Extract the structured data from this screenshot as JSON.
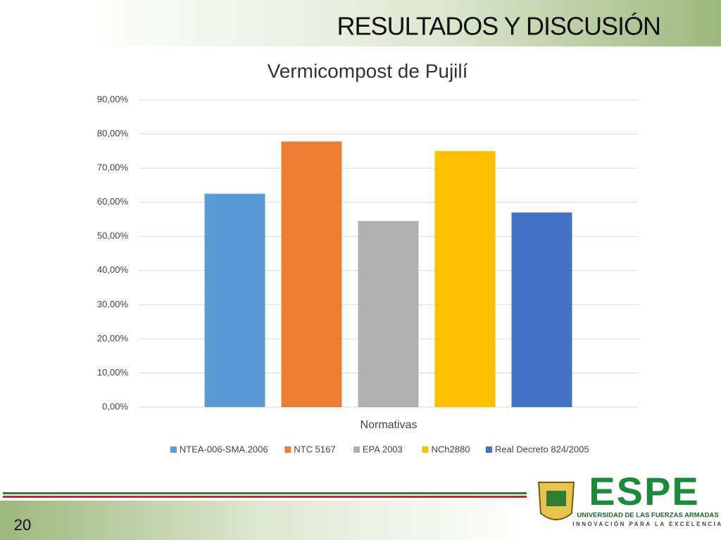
{
  "slide": {
    "heading": "RESULTADOS Y DISCUSIÓN",
    "page_number": "20",
    "logo_text": "ESPE",
    "logo_line1": "UNIVERSIDAD DE LAS FUERZAS ARMADAS",
    "logo_line2": "INNOVACIÓN PARA LA EXCELENCIA"
  },
  "chart_data": {
    "type": "bar",
    "title": "Vermicompost de Pujilí",
    "x_label": "Normativas",
    "series": [
      {
        "name": "NTEA-006-SMA.2006",
        "color": "#5b9bd5",
        "values": [
          62.5
        ]
      },
      {
        "name": "NTC 5167",
        "color": "#ed7d31",
        "values": [
          77.8
        ]
      },
      {
        "name": "EPA 2003",
        "color": "#b0b0b0",
        "values": [
          54.5
        ]
      },
      {
        "name": "NCh2880",
        "color": "#ffc000",
        "values": [
          75.0
        ]
      },
      {
        "name": "Real Decreto 824/2005",
        "color": "#4472c4",
        "values": [
          57.0
        ]
      }
    ],
    "ylim": [
      0,
      90
    ],
    "yticks": [
      {
        "value": 0,
        "label": "0,00%"
      },
      {
        "value": 10,
        "label": "10,00%"
      },
      {
        "value": 20,
        "label": "20,00%"
      },
      {
        "value": 30,
        "label": "30,00%"
      },
      {
        "value": 40,
        "label": "40,00%"
      },
      {
        "value": 50,
        "label": "50,00%"
      },
      {
        "value": 60,
        "label": "60,00%"
      },
      {
        "value": 70,
        "label": "70,00%"
      },
      {
        "value": 80,
        "label": "80,00%"
      },
      {
        "value": 90,
        "label": "90,00%"
      }
    ],
    "grid": true,
    "legend": "bottom"
  }
}
